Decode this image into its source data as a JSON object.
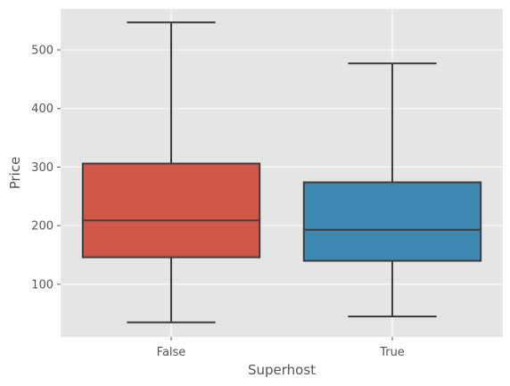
{
  "chart_data": {
    "type": "box",
    "xlabel": "Superhost",
    "ylabel": "Price",
    "categories": [
      "False",
      "True"
    ],
    "colors": [
      "#d0584a",
      "#3f88b1"
    ],
    "background": "#e5e5e5",
    "grid": true,
    "ylim": [
      10,
      570
    ],
    "yticks": [
      100,
      200,
      300,
      400,
      500
    ],
    "boxes": [
      {
        "category": "False",
        "whisker_low": 35,
        "q1": 146,
        "median": 209,
        "q3": 306,
        "whisker_high": 547
      },
      {
        "category": "True",
        "whisker_low": 45,
        "q1": 140,
        "median": 193,
        "q3": 274,
        "whisker_high": 477
      }
    ]
  }
}
